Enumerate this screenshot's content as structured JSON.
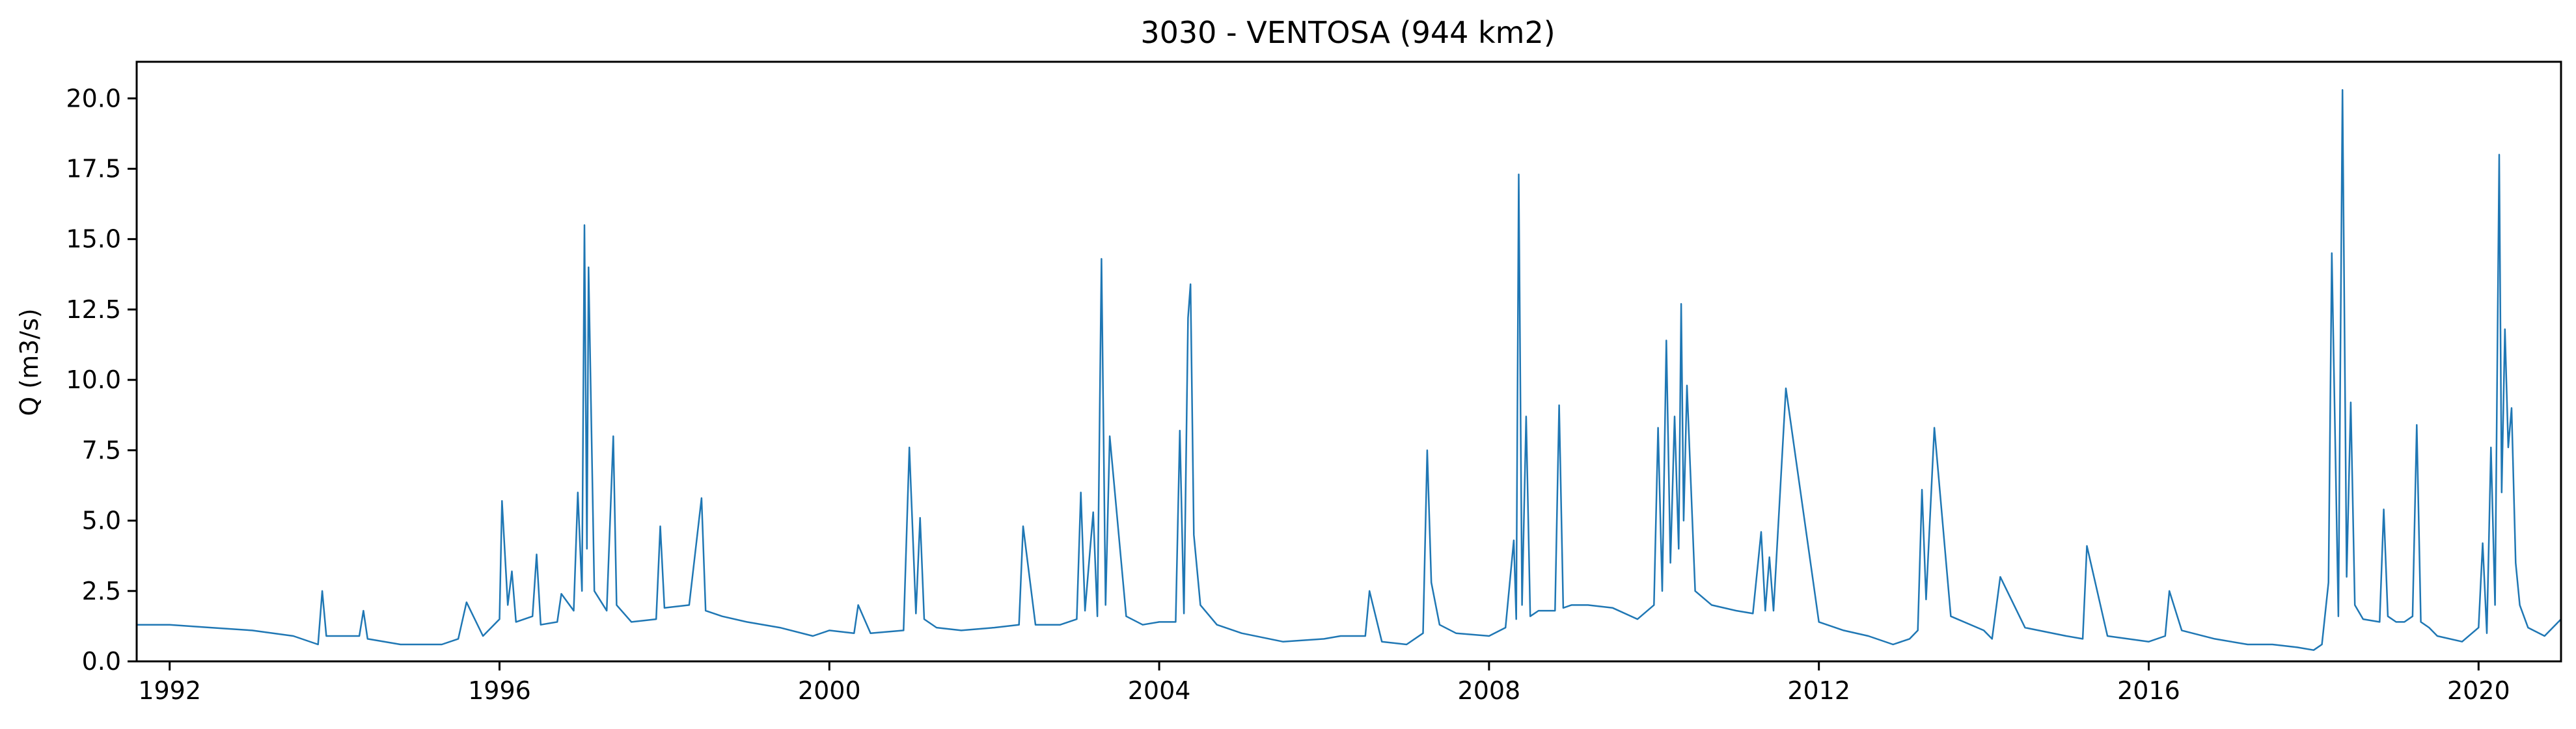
{
  "chart_data": {
    "type": "line",
    "title": "3030 - VENTOSA (944 km2)",
    "xlabel": "",
    "ylabel": "Q (m3/s)",
    "xlim": [
      1991.6,
      2021.0
    ],
    "ylim": [
      0.0,
      21.3
    ],
    "x_ticks": [
      1992,
      1996,
      2000,
      2004,
      2008,
      2012,
      2016,
      2020
    ],
    "x_tick_labels": [
      "1992",
      "1996",
      "2000",
      "2004",
      "2008",
      "2012",
      "2016",
      "2020"
    ],
    "y_ticks": [
      0.0,
      2.5,
      5.0,
      7.5,
      10.0,
      12.5,
      15.0,
      17.5,
      20.0
    ],
    "y_tick_labels": [
      "0.0",
      "2.5",
      "5.0",
      "7.5",
      "10.0",
      "12.5",
      "15.0",
      "17.5",
      "20.0"
    ],
    "grid": false,
    "line_color": "#1f77b4",
    "series": [
      {
        "x": [
          1991.6,
          1992.0,
          1992.5,
          1993.0,
          1993.5,
          1993.8,
          1993.85,
          1993.9,
          1994.3,
          1994.35,
          1994.4,
          1994.8,
          1995.0,
          1995.3,
          1995.5,
          1995.6,
          1995.8,
          1996.0,
          1996.03,
          1996.1,
          1996.15,
          1996.2,
          1996.4,
          1996.45,
          1996.5,
          1996.7,
          1996.75,
          1996.9,
          1996.95,
          1997.0,
          1997.03,
          1997.06,
          1997.08,
          1997.15,
          1997.3,
          1997.38,
          1997.42,
          1997.6,
          1997.9,
          1997.95,
          1998.0,
          1998.3,
          1998.45,
          1998.5,
          1998.7,
          1999.0,
          1999.4,
          1999.8,
          2000.0,
          2000.3,
          2000.35,
          2000.5,
          2000.9,
          2000.97,
          2001.05,
          2001.1,
          2001.15,
          2001.3,
          2001.6,
          2002.0,
          2002.3,
          2002.35,
          2002.5,
          2002.8,
          2003.0,
          2003.05,
          2003.1,
          2003.2,
          2003.25,
          2003.3,
          2003.35,
          2003.4,
          2003.6,
          2003.8,
          2004.0,
          2004.2,
          2004.25,
          2004.3,
          2004.35,
          2004.38,
          2004.42,
          2004.5,
          2004.7,
          2005.0,
          2005.5,
          2006.0,
          2006.2,
          2006.5,
          2006.55,
          2006.7,
          2007.0,
          2007.2,
          2007.25,
          2007.3,
          2007.4,
          2007.6,
          2008.0,
          2008.2,
          2008.3,
          2008.33,
          2008.36,
          2008.4,
          2008.45,
          2008.5,
          2008.6,
          2008.8,
          2008.85,
          2008.9,
          2009.0,
          2009.2,
          2009.5,
          2009.8,
          2010.0,
          2010.05,
          2010.1,
          2010.15,
          2010.2,
          2010.25,
          2010.3,
          2010.33,
          2010.36,
          2010.4,
          2010.5,
          2010.7,
          2011.0,
          2011.2,
          2011.3,
          2011.35,
          2011.4,
          2011.45,
          2011.6,
          2012.0,
          2012.3,
          2012.6,
          2012.9,
          2013.1,
          2013.2,
          2013.25,
          2013.3,
          2013.4,
          2013.6,
          2014.0,
          2014.1,
          2014.2,
          2014.5,
          2015.0,
          2015.2,
          2015.25,
          2015.5,
          2016.0,
          2016.2,
          2016.25,
          2016.4,
          2016.8,
          2017.2,
          2017.5,
          2017.8,
          2018.0,
          2018.1,
          2018.18,
          2018.22,
          2018.3,
          2018.35,
          2018.4,
          2018.45,
          2018.5,
          2018.6,
          2018.8,
          2018.85,
          2018.9,
          2019.0,
          2019.1,
          2019.2,
          2019.25,
          2019.3,
          2019.4,
          2019.5,
          2019.8,
          2020.0,
          2020.05,
          2020.1,
          2020.15,
          2020.2,
          2020.25,
          2020.28,
          2020.32,
          2020.36,
          2020.4,
          2020.45,
          2020.5,
          2020.6,
          2020.8,
          2021.0
        ],
        "y": [
          1.3,
          1.3,
          1.2,
          1.1,
          0.9,
          0.6,
          2.5,
          0.9,
          0.9,
          1.8,
          0.8,
          0.6,
          0.6,
          0.6,
          0.8,
          2.1,
          0.9,
          1.5,
          5.7,
          2.0,
          3.2,
          1.4,
          1.6,
          3.8,
          1.3,
          1.4,
          2.4,
          1.8,
          6.0,
          2.5,
          15.5,
          4.0,
          14.0,
          2.5,
          1.8,
          8.0,
          2.0,
          1.4,
          1.5,
          4.8,
          1.9,
          2.0,
          5.8,
          1.8,
          1.6,
          1.4,
          1.2,
          0.9,
          1.1,
          1.0,
          2.0,
          1.0,
          1.1,
          7.6,
          1.7,
          5.1,
          1.5,
          1.2,
          1.1,
          1.2,
          1.3,
          4.8,
          1.3,
          1.3,
          1.5,
          6.0,
          1.8,
          5.3,
          1.6,
          14.3,
          2.0,
          8.0,
          1.6,
          1.3,
          1.4,
          1.4,
          8.2,
          1.7,
          12.2,
          13.4,
          4.5,
          2.0,
          1.3,
          1.0,
          0.7,
          0.8,
          0.9,
          0.9,
          2.5,
          0.7,
          0.6,
          1.0,
          7.5,
          2.8,
          1.3,
          1.0,
          0.9,
          1.2,
          4.3,
          1.5,
          17.3,
          2.0,
          8.7,
          1.6,
          1.8,
          1.8,
          9.1,
          1.9,
          2.0,
          2.0,
          1.9,
          1.5,
          2.0,
          8.3,
          2.5,
          11.4,
          3.5,
          8.7,
          4.0,
          12.7,
          5.0,
          9.8,
          2.5,
          2.0,
          1.8,
          1.7,
          4.6,
          1.8,
          3.7,
          1.8,
          9.7,
          1.4,
          1.1,
          0.9,
          0.6,
          0.8,
          1.1,
          6.1,
          2.2,
          8.3,
          1.6,
          1.1,
          0.8,
          3.0,
          1.2,
          0.9,
          0.8,
          4.1,
          0.9,
          0.7,
          0.9,
          2.5,
          1.1,
          0.8,
          0.6,
          0.6,
          0.5,
          0.4,
          0.6,
          2.8,
          14.5,
          1.6,
          20.3,
          3.0,
          9.2,
          2.0,
          1.5,
          1.4,
          5.4,
          1.6,
          1.4,
          1.4,
          1.6,
          8.4,
          1.4,
          1.2,
          0.9,
          0.7,
          1.2,
          4.2,
          1.0,
          7.6,
          2.0,
          18.0,
          6.0,
          11.8,
          7.6,
          9.0,
          3.5,
          2.0,
          1.2,
          0.9,
          1.5
        ]
      }
    ]
  }
}
